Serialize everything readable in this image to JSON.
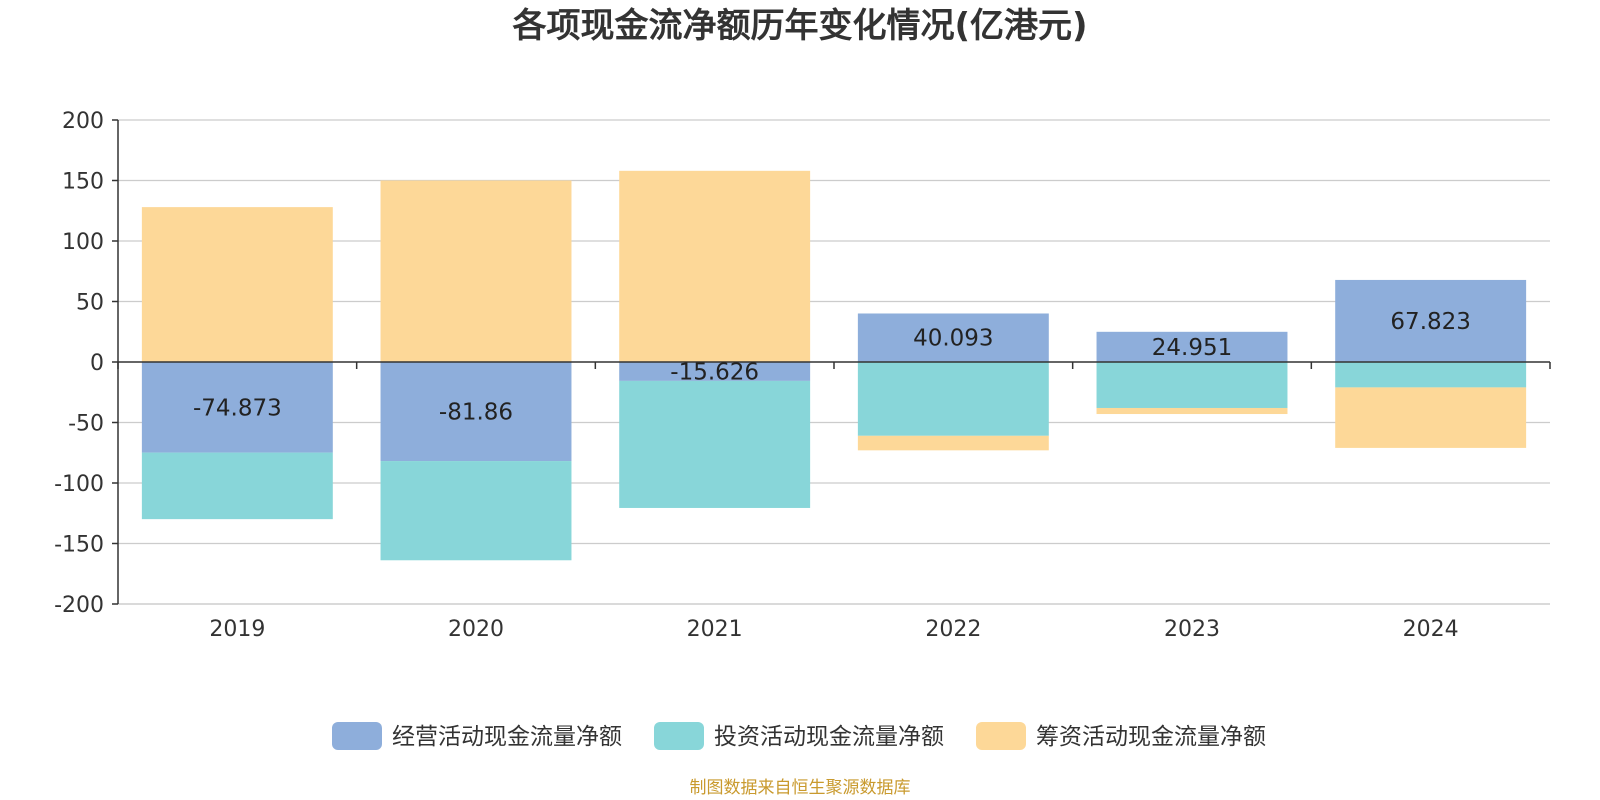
{
  "chart_data": {
    "type": "bar",
    "stacked": true,
    "title": "各项现金流净额历年变化情况(亿港元)",
    "categories": [
      "2019",
      "2020",
      "2021",
      "2022",
      "2023",
      "2024"
    ],
    "ylim": [
      -200,
      200
    ],
    "yticks": [
      200,
      150,
      100,
      50,
      0,
      -50,
      -100,
      -150,
      -200
    ],
    "grid": true,
    "legend_position": "bottom",
    "series": [
      {
        "name": "经营活动现金流量净额",
        "color": "#8eaedb",
        "values": [
          -74.873,
          -81.86,
          -15.626,
          40.093,
          24.951,
          67.823
        ],
        "labels": [
          "-74.873",
          "-81.86",
          "-15.626",
          "40.093",
          "24.951",
          "67.823"
        ]
      },
      {
        "name": "投资活动现金流量净额",
        "color": "#88d6d9",
        "values": [
          -55,
          -82,
          -105,
          -61,
          -38,
          -21
        ]
      },
      {
        "name": "筹资活动现金流量净额",
        "color": "#fdd898",
        "values": [
          128,
          150,
          158,
          -12,
          -5,
          -50
        ]
      }
    ]
  },
  "source": "制图数据来自恒生聚源数据库"
}
